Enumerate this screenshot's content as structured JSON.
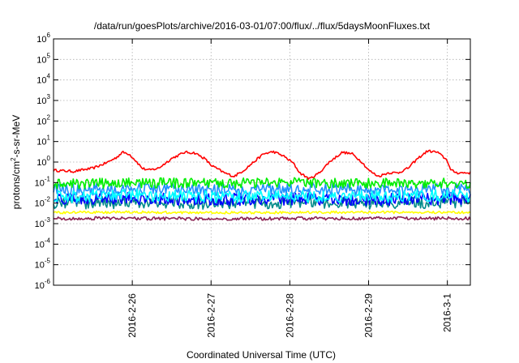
{
  "chart_data": {
    "type": "line",
    "title": "/data/run/goesPlots/archive/2016-03-01/07:00/flux/../flux/5daysMoonFluxes.txt",
    "xlabel": "Coordinated Universal Time (UTC)",
    "ylabel": {
      "prefix": "protons/cm",
      "sup": "2",
      "suffix": "-s-sr-MeV"
    },
    "yscale": "log",
    "ylim": [
      1e-06,
      1000000.0
    ],
    "y_ticks": [
      {
        "exp": -6
      },
      {
        "exp": -5
      },
      {
        "exp": -4
      },
      {
        "exp": -3
      },
      {
        "exp": -2
      },
      {
        "exp": -1
      },
      {
        "exp": 0
      },
      {
        "exp": 1
      },
      {
        "exp": 2
      },
      {
        "exp": 3
      },
      {
        "exp": 4
      },
      {
        "exp": 5
      },
      {
        "exp": 6
      }
    ],
    "xlim": [
      "2016-02-25 00:00",
      "2016-03-01 07:00"
    ],
    "x_ticks": [
      "2016-2-26",
      "2016-2-27",
      "2016-2-28",
      "2016-2-29",
      "2016-3-1"
    ],
    "grid": true,
    "series": [
      {
        "color": "#ff0000",
        "noise": 0.06,
        "x": [
          "2016-02-25 00:00",
          "2016-02-25 06:00",
          "2016-02-25 12:00",
          "2016-02-25 16:00",
          "2016-02-25 19:00",
          "2016-02-25 21:00",
          "2016-02-25 23:00",
          "2016-02-26 01:00",
          "2016-02-26 03:00",
          "2016-02-26 05:00",
          "2016-02-26 08:00",
          "2016-02-26 12:00",
          "2016-02-26 16:00",
          "2016-02-26 19:00",
          "2016-02-26 22:00",
          "2016-02-27 00:00",
          "2016-02-27 04:00",
          "2016-02-27 07:00",
          "2016-02-27 10:00",
          "2016-02-27 13:00",
          "2016-02-27 16:00",
          "2016-02-27 19:00",
          "2016-02-27 22:00",
          "2016-02-28 01:00",
          "2016-02-28 03:00",
          "2016-02-28 06:00",
          "2016-02-28 09:00",
          "2016-02-28 12:00",
          "2016-02-28 16:00",
          "2016-02-28 19:00",
          "2016-02-28 22:00",
          "2016-02-29 00:00",
          "2016-02-29 03:00",
          "2016-02-29 06:00",
          "2016-02-29 09:00",
          "2016-02-29 12:00",
          "2016-02-29 15:00",
          "2016-02-29 18:00",
          "2016-02-29 21:00",
          "2016-03-01 00:00",
          "2016-03-01 01:00",
          "2016-03-01 03:00",
          "2016-03-01 05:00",
          "2016-03-01 07:00"
        ],
        "y": [
          0.4,
          0.35,
          0.5,
          0.9,
          1.6,
          3.0,
          2.5,
          1.2,
          0.5,
          0.4,
          0.5,
          1.5,
          3.0,
          2.8,
          1.5,
          0.7,
          0.3,
          0.2,
          0.4,
          1.0,
          2.5,
          3.2,
          2.0,
          0.9,
          0.3,
          0.15,
          0.3,
          1.0,
          3.0,
          2.5,
          1.0,
          0.4,
          0.2,
          0.3,
          0.3,
          0.5,
          1.5,
          3.5,
          3.0,
          1.2,
          0.4,
          0.3,
          0.3,
          0.3
        ]
      },
      {
        "color": "#00ee00",
        "noise": 0.25,
        "x": [
          "2016-02-25 00:00",
          "2016-02-26 00:00",
          "2016-02-27 00:00",
          "2016-02-28 00:00",
          "2016-02-29 00:00",
          "2016-03-01 00:00",
          "2016-03-01 07:00"
        ],
        "y": [
          0.08,
          0.1,
          0.09,
          0.1,
          0.09,
          0.1,
          0.08
        ]
      },
      {
        "color": "#00ffff",
        "noise": 0.3,
        "x": [
          "2016-02-25 00:00",
          "2016-02-26 00:00",
          "2016-02-27 00:00",
          "2016-02-28 00:00",
          "2016-02-29 00:00",
          "2016-03-01 00:00",
          "2016-03-01 07:00"
        ],
        "y": [
          0.02,
          0.025,
          0.02,
          0.022,
          0.02,
          0.024,
          0.02
        ]
      },
      {
        "color": "#1e90ff",
        "noise": 0.3,
        "x": [
          "2016-02-25 00:00",
          "2016-02-26 00:00",
          "2016-02-27 00:00",
          "2016-02-28 00:00",
          "2016-02-29 00:00",
          "2016-03-01 00:00",
          "2016-03-01 07:00"
        ],
        "y": [
          0.045,
          0.05,
          0.04,
          0.05,
          0.045,
          0.05,
          0.04
        ]
      },
      {
        "color": "#0000ff",
        "noise": 0.3,
        "x": [
          "2016-02-25 00:00",
          "2016-02-26 00:00",
          "2016-02-27 00:00",
          "2016-02-28 00:00",
          "2016-02-29 00:00",
          "2016-03-01 00:00",
          "2016-03-01 07:00"
        ],
        "y": [
          0.015,
          0.017,
          0.015,
          0.016,
          0.015,
          0.016,
          0.015
        ]
      },
      {
        "color": "#008b8b",
        "noise": 0.3,
        "x": [
          "2016-02-25 00:00",
          "2016-02-26 00:00",
          "2016-02-27 00:00",
          "2016-02-28 00:00",
          "2016-02-29 00:00",
          "2016-03-01 00:00",
          "2016-03-01 07:00"
        ],
        "y": [
          0.01,
          0.011,
          0.01,
          0.011,
          0.01,
          0.011,
          0.01
        ]
      },
      {
        "color": "#ffff00",
        "noise": 0.06,
        "x": [
          "2016-02-25 00:00",
          "2016-02-26 00:00",
          "2016-02-27 00:00",
          "2016-02-28 00:00",
          "2016-02-29 00:00",
          "2016-03-01 00:00",
          "2016-03-01 07:00"
        ],
        "y": [
          0.0035,
          0.0036,
          0.0034,
          0.0035,
          0.0036,
          0.0035,
          0.0035
        ]
      },
      {
        "color": "#8b2252",
        "noise": 0.08,
        "x": [
          "2016-02-25 00:00",
          "2016-02-26 00:00",
          "2016-02-27 00:00",
          "2016-02-28 00:00",
          "2016-02-29 00:00",
          "2016-03-01 00:00",
          "2016-03-01 07:00"
        ],
        "y": [
          0.0018,
          0.0018,
          0.0017,
          0.0018,
          0.0018,
          0.0018,
          0.0018
        ]
      }
    ]
  }
}
